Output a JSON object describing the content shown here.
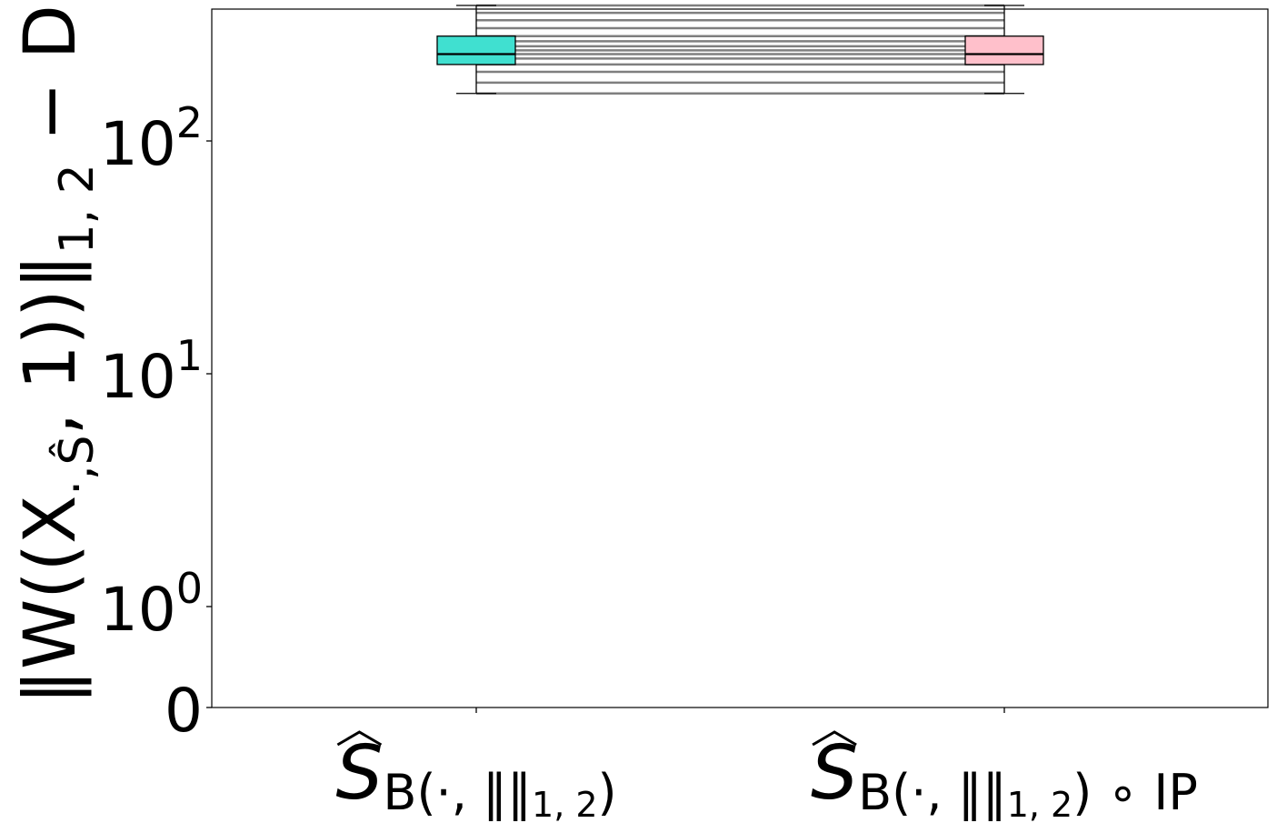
{
  "chart_data": {
    "type": "box",
    "title": "",
    "xlabel": "",
    "ylabel": "‖W((X_{·,Ŝ}, 1))‖_{1,2} − D",
    "yscale": "symlog",
    "ylim": [
      0,
      600
    ],
    "y_ticks": [
      {
        "value": 0,
        "base": "0",
        "exp": ""
      },
      {
        "value": 1,
        "base": "10",
        "exp": "0"
      },
      {
        "value": 10,
        "base": "10",
        "exp": "1"
      },
      {
        "value": 100,
        "base": "10",
        "exp": "2"
      }
    ],
    "categories": [
      {
        "label_main": "S",
        "label_sub": "B(·, ‖‖",
        "label_sub2": "1, 2",
        "label_tail": ")",
        "label_extra": ""
      },
      {
        "label_main": "S",
        "label_sub": "B(·, ‖‖",
        "label_sub2": "1, 2",
        "label_tail": ")",
        "label_extra": " ∘ IP"
      }
    ],
    "boxes": [
      {
        "color": "#40e0d0",
        "q1": 213,
        "median": 236,
        "q3": 282,
        "whisker_low": 160,
        "whisker_high": 382
      },
      {
        "color": "#ffc0cb",
        "q1": 213,
        "median": 236,
        "q3": 282,
        "whisker_low": 160,
        "whisker_high": 382
      }
    ],
    "paired_lines": [
      382,
      355,
      330,
      305,
      282,
      268,
      255,
      245,
      236,
      226,
      213,
      198,
      178,
      160
    ],
    "grid": false,
    "legend": "none"
  }
}
